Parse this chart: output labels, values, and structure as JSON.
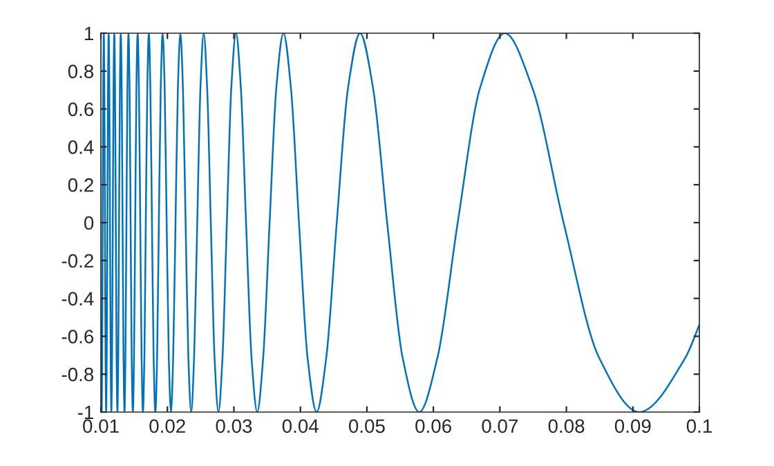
{
  "chart_data": {
    "type": "line",
    "x": [
      0.01,
      0.01003,
      0.01011,
      0.01019,
      0.01027,
      0.01035,
      0.01044,
      0.01052,
      0.01061,
      0.0107,
      0.01079,
      0.01088,
      0.01098,
      0.01107,
      0.01117,
      0.01127,
      0.01137,
      0.01147,
      0.01157,
      0.01168,
      0.01179,
      0.0119,
      0.01201,
      0.01213,
      0.01224,
      0.01236,
      0.01248,
      0.01261,
      0.01273,
      0.01286,
      0.01299,
      0.01313,
      0.01326,
      0.0134,
      0.01355,
      0.01369,
      0.01384,
      0.01399,
      0.01415,
      0.01431,
      0.01447,
      0.01463,
      0.01481,
      0.01498,
      0.01516,
      0.01534,
      0.01553,
      0.01572,
      0.01592,
      0.01612,
      0.01632,
      0.01654,
      0.01675,
      0.01698,
      0.01721,
      0.01744,
      0.01768,
      0.01793,
      0.01819,
      0.01845,
      0.01872,
      0.019,
      0.01929,
      0.01959,
      0.01989,
      0.02021,
      0.02054,
      0.02087,
      0.02122,
      0.02158,
      0.02195,
      0.02234,
      0.02274,
      0.02315,
      0.02358,
      0.02402,
      0.02449,
      0.02497,
      0.02546,
      0.02598,
      0.02653,
      0.02709,
      0.02768,
      0.02829,
      0.02894,
      0.02961,
      0.03032,
      0.03105,
      0.03183,
      0.03265,
      0.03351,
      0.03441,
      0.03537,
      0.03638,
      0.03745,
      0.03858,
      0.03979,
      0.04107,
      0.04244,
      0.0439,
      0.04547,
      0.04716,
      0.04897,
      0.05093,
      0.05305,
      0.05536,
      0.05787,
      0.06063,
      0.06366,
      0.06701,
      0.07074,
      0.0749,
      0.07958,
      0.08488,
      0.09095,
      0.09794,
      0.1
    ],
    "series": [
      {
        "color": "#0072bd",
        "values": [
          -0.51,
          -0.71,
          -1,
          -0.71,
          0,
          0.71,
          1,
          0.71,
          0,
          -0.71,
          -1,
          -0.71,
          0,
          0.71,
          1,
          0.71,
          0,
          -0.71,
          -1,
          -0.71,
          0,
          0.71,
          1,
          0.71,
          0,
          -0.71,
          -1,
          -0.71,
          0,
          0.71,
          1,
          0.71,
          0,
          -0.71,
          -1,
          -0.71,
          0,
          0.71,
          1,
          0.71,
          0,
          -0.71,
          -1,
          -0.71,
          0,
          0.71,
          1,
          0.71,
          0,
          -0.71,
          -1,
          -0.71,
          0,
          0.71,
          1,
          0.71,
          0,
          -0.71,
          -1,
          -0.71,
          0,
          0.71,
          1,
          0.71,
          0,
          -0.71,
          -1,
          -0.71,
          0,
          0.71,
          1,
          0.71,
          0,
          -0.71,
          -1,
          -0.71,
          0,
          0.71,
          1,
          0.71,
          0,
          -0.71,
          -1,
          -0.71,
          0,
          0.71,
          1,
          0.71,
          0,
          -0.71,
          -1,
          -0.71,
          0,
          0.71,
          1,
          0.71,
          0,
          -0.71,
          -1,
          -0.71,
          0,
          0.71,
          1,
          0.71,
          0,
          -0.71,
          -1,
          -0.71,
          0,
          0.71,
          1,
          0.71,
          0,
          -0.71,
          -1,
          -0.71,
          -0.54
        ]
      }
    ],
    "xlim": [
      0.01,
      0.1
    ],
    "xticks": [
      0.01,
      0.02,
      0.03,
      0.04,
      0.05,
      0.06,
      0.07,
      0.08,
      0.09,
      0.1
    ],
    "ylim": [
      -1,
      1
    ],
    "yticks": [
      {
        "value": -1,
        "label": "-1"
      },
      {
        "value": -0.8,
        "label": "-0.8"
      },
      {
        "value": -0.6,
        "label": "-0.6"
      },
      {
        "value": -0.4,
        "label": "-0.4"
      },
      {
        "value": -0.2,
        "label": "-0.2"
      },
      0,
      0.2,
      0.4,
      0.6,
      0.8,
      1
    ],
    "grid": false,
    "line_style": "solid"
  }
}
